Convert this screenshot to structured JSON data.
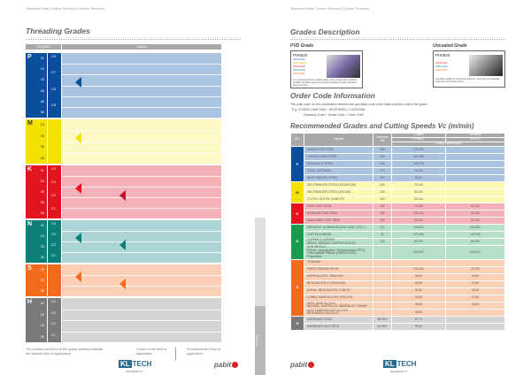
{
  "left": {
    "crumb": "Technical Data | Datos Técnicos | Dados Técnicos",
    "title": "Threading Grades",
    "header": {
      "iso": "ISO/ANSI",
      "grades": "Grades"
    },
    "groups": [
      {
        "letter": "P",
        "color": "#0a4f9c",
        "band": "#a9c3e0",
        "nums": [
          "01",
          "10",
          "20",
          "30",
          "40",
          "50"
        ],
        "codes": [
          "C8",
          "C7",
          "C6",
          "C5"
        ],
        "arrows": [
          "#0a4f9c"
        ]
      },
      {
        "letter": "M",
        "color": "#f5e100",
        "band": "#fdf9c4",
        "nums": [
          "10",
          "20",
          "30",
          "40"
        ],
        "codes": [],
        "arrows": [
          "#f5e100"
        ]
      },
      {
        "letter": "K",
        "color": "#e2141e",
        "band": "#f4b2b8",
        "nums": [
          "01",
          "10",
          "20",
          "30",
          "40"
        ],
        "codes": [
          "C4",
          "C3",
          "C2",
          "C1"
        ],
        "arrows": [
          "#e2141e",
          "#c0102a"
        ]
      },
      {
        "letter": "N",
        "color": "#0b7f78",
        "band": "#acd6d6",
        "nums": [
          "01",
          "10",
          "20",
          "30"
        ],
        "codes": [
          "C4",
          "C3",
          "C2",
          "C1"
        ],
        "arrows": [
          "#0b7f78",
          "#0b7f78"
        ]
      },
      {
        "letter": "S",
        "color": "#f26b1d",
        "band": "#fbd0b5",
        "nums": [
          "10",
          "20",
          "30"
        ],
        "codes": [],
        "arrows": [
          "#f26b1d",
          "#f26b1d"
        ]
      },
      {
        "letter": "H",
        "color": "#7a7a7a",
        "band": "#d4d4d4",
        "nums": [
          "01",
          "10",
          "20",
          "30"
        ],
        "codes": [
          "C4",
          "C3",
          "C2",
          "C1"
        ],
        "arrows": []
      }
    ],
    "footer_note": "The position and form of the grade symbols indicate the suitable field of application.",
    "legend_center": "Centre of the field of application",
    "legend_recommended": "Recommended field of application",
    "side_tab": "Threading"
  },
  "right": {
    "crumb": "Technical Data | Datos Técnicos | Dados Técnicos",
    "title": "Grades Description",
    "pvd": {
      "heading": "PVD Grade",
      "code": "PH6920",
      "lines": [
        "(P10-P30)",
        "(M10-M20)",
        "(K10-K20)",
        "(N01-N10)",
        "(S10-S20)"
      ],
      "desc": "An universal and fine-coated grade, has a tough wear resistant carbide. Excellent general purpose threading of steel, stainless steel, cast iron."
    },
    "uncoated": {
      "heading": "Uncoated Grade",
      "code": "PH0920",
      "lines": [
        "(K01-K10)",
        "(N01-N10)",
        "(S10-S20)"
      ],
      "desc": "Uncoated grade for machining Cast Iron, Non-ferrous materials, Aluminium and Super Alloys."
    },
    "order_title": "Order Code Information",
    "order_text": "The order code it's the combination between the geometry code of the insert plus the code of the grade.",
    "order_example": "E.g. 2120020 (16IR 14W) + 66 (PH6920) = 212002066",
    "order_formula": "Geometry Code + Grade Code = Order Code",
    "rec_title": "Recommended Grades and Cutting Speeds Vc (m/min)",
    "table_header": {
      "iso": "ISO",
      "material": "Material",
      "hardness": "Hardness HB",
      "coated": "Coated",
      "uncoated": "Uncoated",
      "coated_grade": "PH6920",
      "uncoated_grade": "PH0920",
      "speed": "Cutting Speed m/min"
    },
    "groups": [
      {
        "iso": "P",
        "color": "#0a4f9c",
        "band": "#a9c3e0",
        "rows": [
          [
            "UNALLOYED STEEL",
            "180",
            "120-200",
            ""
          ],
          [
            "LOW ALLOYED STEEL",
            "200",
            "110-180",
            ""
          ],
          [
            "HIGH ALLOY STEEL",
            "240",
            "100-170",
            ""
          ],
          [
            "STEEL CASTINGS",
            "270",
            "70-120",
            ""
          ],
          [
            "HEAT TREATED STEEL",
            "300",
            "50-90",
            ""
          ]
        ]
      },
      {
        "iso": "M",
        "color": "#f5e100",
        "band": "#fdf9b0",
        "rows": [
          [
            "300 STAINLESS STEEL (303,304,316)",
            "200",
            "70-140",
            ""
          ],
          [
            "400 STAINLESS STEEL (430-440)",
            "240",
            "60-120",
            ""
          ],
          [
            "17-4 PH, 15-5 PH, 15-MO PH",
            "400",
            "50-110",
            ""
          ]
        ]
      },
      {
        "iso": "K",
        "color": "#e2141e",
        "band": "#f4b2b8",
        "rows": [
          [
            "GREY CAST IRON",
            "150",
            "70-150",
            "60-120"
          ],
          [
            "NODULAR CAST IRON",
            "180",
            "100-140",
            "80-130"
          ],
          [
            "MALLEABLE CAST IRON",
            "240",
            "60-150",
            "60-100"
          ]
        ]
      },
      {
        "iso": "N",
        "color": "#1a9a4a",
        "band": "#b7e0c8",
        "rows": [
          [
            "WROUGHT ALUMINIUM (2024, 6061, 7075...)",
            "60",
            "100-600",
            "100-500"
          ],
          [
            "CAST ALUMINIUM",
            "90",
            "170-400",
            "100-250"
          ],
          [
            "COPPER & COPPER\nBRASS, BRONZE, COPPER SILICON",
            "100",
            "60-180",
            "60-150"
          ],
          [
            "NON METALIC:\nRubber, polypropylene, Thermoplastics (PPC),\nThermoplastic Plastics (FIBERGLASS),\nPolyamides",
            "",
            "200-500",
            "200-500"
          ]
        ]
      },
      {
        "iso": "S",
        "color": "#f26b1d",
        "band": "#fbd0b5",
        "rows": [
          [
            "TITANIUM:",
            "",
            "",
            ""
          ],
          [
            "PURE TITANIUM: 99.0%",
            "",
            "100-150",
            "70-100"
          ],
          [
            "ALPHA ALLOYS: Ti5Al2.5Sn",
            "",
            "40-60",
            "30-50"
          ],
          [
            "BETA ALLOYS: Ti 13V11Cr3Al",
            "",
            "30-50",
            "20-35"
          ],
          [
            "ALPHA - BETA ALLOYS: Ti 6Al 4V",
            "",
            "30-50",
            "25-40"
          ],
          [
            "COBALT BASE ALLOYS: STELLITE",
            "",
            "30-50",
            "20-30"
          ],
          [
            "NIKEL BASE ALLOYS:\nINCONEL, HASTELLOY, WASPALLOY, KOVAR",
            "",
            "25-40",
            "25-40"
          ],
          [
            "HIGH TEMPERATURE ALLOYS\nIRON BASED: INCOLOY",
            "",
            "30-50",
            ""
          ]
        ]
      },
      {
        "iso": "H",
        "color": "#7a7a7a",
        "band": "#d4d4d4",
        "rows": [
          [
            "HARDENED STEEL",
            "58 HRc",
            "50-70",
            ""
          ],
          [
            "HARDENED CAST IRON",
            "60 HRc",
            "30-50",
            ""
          ]
        ]
      }
    ]
  },
  "logos": {
    "kl": "KL",
    "tech": "TECH",
    "url": "www.kltech.cz",
    "pabit": "pabit"
  }
}
